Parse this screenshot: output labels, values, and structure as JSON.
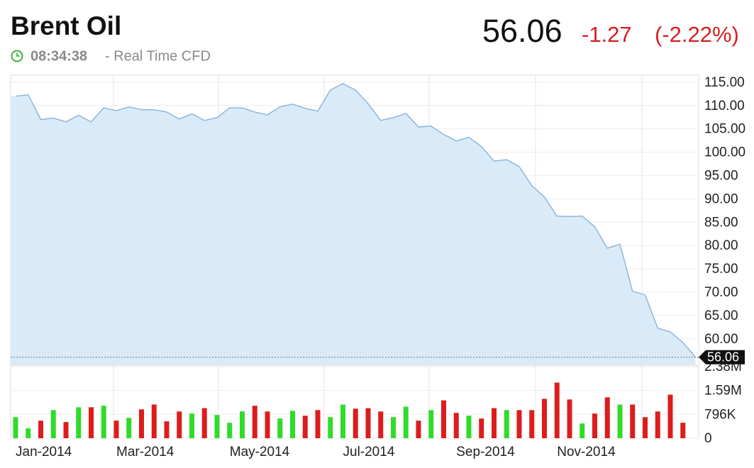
{
  "header": {
    "title": "Brent Oil",
    "time": "08:34:38",
    "source": "- Real Time CFD",
    "price": "56.06",
    "change": "-1.27",
    "change_percent": "(-2.22%)"
  },
  "chart_data": [
    {
      "type": "area",
      "categories": [
        "Jan-2014",
        null,
        null,
        null,
        null,
        null,
        null,
        null,
        "Mar-2014",
        null,
        null,
        null,
        null,
        null,
        null,
        null,
        null,
        "May-2014",
        null,
        null,
        null,
        null,
        null,
        null,
        null,
        null,
        "Jul-2014",
        null,
        null,
        null,
        null,
        null,
        null,
        null,
        null,
        "Sep-2014",
        null,
        null,
        null,
        null,
        null,
        null,
        null,
        "Nov-2014",
        null,
        null,
        null,
        null,
        null,
        null,
        null,
        null,
        null,
        null,
        null
      ],
      "series": [
        {
          "color": "#8fb6d8",
          "fill": "#d9ebf9",
          "values": [
            112.0,
            112.3,
            107.0,
            107.3,
            106.5,
            107.9,
            106.5,
            109.5,
            108.9,
            109.7,
            109.1,
            109.1,
            108.6,
            107.1,
            108.2,
            106.8,
            107.4,
            109.5,
            109.5,
            108.6,
            108.0,
            109.7,
            110.3,
            109.4,
            108.8,
            113.3,
            114.7,
            113.3,
            110.4,
            106.8,
            107.4,
            108.3,
            105.4,
            105.6,
            103.8,
            102.4,
            103.2,
            101.2,
            98.1,
            98.4,
            96.9,
            92.8,
            90.4,
            86.3,
            86.2,
            86.3,
            84.0,
            79.4,
            80.3,
            70.2,
            69.4,
            62.3,
            61.5,
            59.2,
            56.06
          ]
        }
      ],
      "ylim": [
        54.5,
        116.5
      ],
      "yticks": [
        {
          "value": 60,
          "label": "60.00"
        },
        {
          "value": 65,
          "label": "65.00"
        },
        {
          "value": 70,
          "label": "70.00"
        },
        {
          "value": 75,
          "label": "75.00"
        },
        {
          "value": 80,
          "label": "80.00"
        },
        {
          "value": 85,
          "label": "85.00"
        },
        {
          "value": 90,
          "label": "90.00"
        },
        {
          "value": 95,
          "label": "95.00"
        },
        {
          "value": 100,
          "label": "100.00"
        },
        {
          "value": 105,
          "label": "105.00"
        },
        {
          "value": 110,
          "label": "110.00"
        },
        {
          "value": 115,
          "label": "115.00"
        }
      ],
      "current_value": 56.06,
      "grid": true
    },
    {
      "type": "bar",
      "values": [
        702000,
        328000,
        585000,
        936000,
        538000,
        1030000,
        1030000,
        1080000,
        585000,
        679000,
        960000,
        1120000,
        562000,
        890000,
        820000,
        1000000,
        773000,
        515000,
        890000,
        1080000,
        890000,
        655000,
        913000,
        749000,
        936000,
        702000,
        1120000,
        983000,
        1000000,
        890000,
        702000,
        1050000,
        585000,
        936000,
        1260000,
        843000,
        749000,
        655000,
        1000000,
        936000,
        936000,
        936000,
        1310000,
        1850000,
        1290000,
        492000,
        820000,
        1360000,
        1120000,
        1120000,
        702000,
        890000,
        1450000,
        515000,
        null
      ],
      "colors": [
        "#2fdc2a",
        "#2fdc2a",
        "#dd1c1c",
        "#2fdc2a",
        "#dd1c1c",
        "#2fdc2a",
        "#dd1c1c",
        "#2fdc2a",
        "#dd1c1c",
        "#2fdc2a",
        "#dd1c1c",
        "#dd1c1c",
        "#dd1c1c",
        "#dd1c1c",
        "#2fdc2a",
        "#dd1c1c",
        "#2fdc2a",
        "#2fdc2a",
        "#2fdc2a",
        "#dd1c1c",
        "#dd1c1c",
        "#2fdc2a",
        "#2fdc2a",
        "#dd1c1c",
        "#dd1c1c",
        "#2fdc2a",
        "#2fdc2a",
        "#dd1c1c",
        "#dd1c1c",
        "#dd1c1c",
        "#2fdc2a",
        "#2fdc2a",
        "#dd1c1c",
        "#2fdc2a",
        "#dd1c1c",
        "#dd1c1c",
        "#2fdc2a",
        "#dd1c1c",
        "#dd1c1c",
        "#2fdc2a",
        "#dd1c1c",
        "#dd1c1c",
        "#dd1c1c",
        "#dd1c1c",
        "#dd1c1c",
        "#2fdc2a",
        "#dd1c1c",
        "#dd1c1c",
        "#2fdc2a",
        "#dd1c1c",
        "#dd1c1c",
        "#dd1c1c",
        "#dd1c1c",
        "#dd1c1c",
        null
      ],
      "ylim": [
        0,
        2430000
      ],
      "yticks": [
        0,
        {
          "value": 796000,
          "label": "796K"
        },
        {
          "value": 1590000,
          "label": "1.59M"
        },
        {
          "value": 2380000,
          "label": "2.38M"
        }
      ],
      "grid": true
    }
  ]
}
